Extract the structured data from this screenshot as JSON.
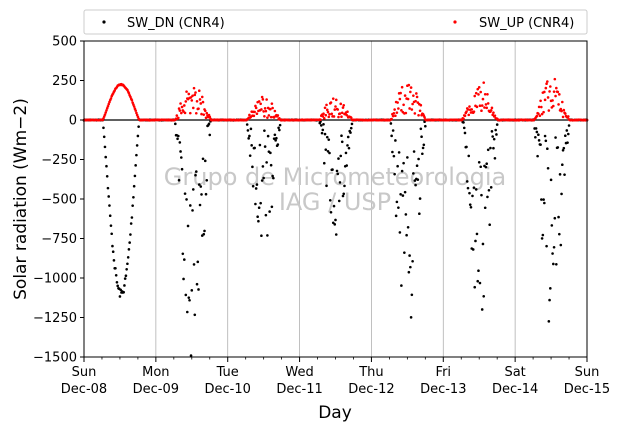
{
  "chart_data": {
    "type": "scatter",
    "ylabel": "Solar radiation (Wm−2)",
    "xlabel": "Day",
    "ylim": [
      -1500,
      500
    ],
    "xlim": [
      "2019-12-08",
      "2019-12-15"
    ],
    "yticks": [
      500,
      250,
      0,
      -250,
      -500,
      -750,
      -1000,
      -1250,
      -1500
    ],
    "ytick_labels": [
      "500",
      "250",
      "0",
      "−250",
      "−500",
      "−750",
      "−1000",
      "−1250",
      "−1500"
    ],
    "xticks": [
      {
        "day": "Sun",
        "date": "Dec-08"
      },
      {
        "day": "Mon",
        "date": "Dec-09"
      },
      {
        "day": "Tue",
        "date": "Dec-10"
      },
      {
        "day": "Wed",
        "date": "Dec-11"
      },
      {
        "day": "Thu",
        "date": "Dec-12"
      },
      {
        "day": "Fri",
        "date": "Dec-13"
      },
      {
        "day": "Sat",
        "date": "Dec-14"
      },
      {
        "day": "Sun",
        "date": "Dec-15"
      }
    ],
    "grid": "vertical",
    "zero_line": true,
    "legend_position": "top-outside",
    "watermark": [
      "Grupo de Micrometeorologia",
      "IAG / USP"
    ],
    "series": [
      {
        "name": "SW_DN (CNR4)",
        "color": "#000000",
        "marker": "point",
        "daily": [
          {
            "day": 0,
            "rise": 0.26,
            "set": 0.77,
            "peak": -1100,
            "noise": 0.05
          },
          {
            "day": 1,
            "rise": 0.26,
            "set": 0.77,
            "peak": -900,
            "noise": 0.45
          },
          {
            "day": 2,
            "rise": 0.26,
            "set": 0.74,
            "peak": -480,
            "noise": 0.45
          },
          {
            "day": 3,
            "rise": 0.27,
            "set": 0.74,
            "peak": -450,
            "noise": 0.4
          },
          {
            "day": 4,
            "rise": 0.26,
            "set": 0.76,
            "peak": -800,
            "noise": 0.45
          },
          {
            "day": 5,
            "rise": 0.26,
            "set": 0.76,
            "peak": -750,
            "noise": 0.45
          },
          {
            "day": 6,
            "rise": 0.26,
            "set": 0.76,
            "peak": -800,
            "noise": 0.45
          }
        ]
      },
      {
        "name": "SW_UP (CNR4)",
        "color": "#ff0000",
        "marker": "point",
        "daily": [
          {
            "day": 0,
            "rise": 0.26,
            "set": 0.77,
            "peak": 225,
            "noise": 0.03
          },
          {
            "day": 1,
            "rise": 0.26,
            "set": 0.77,
            "peak": 150,
            "noise": 0.35
          },
          {
            "day": 2,
            "rise": 0.26,
            "set": 0.74,
            "peak": 95,
            "noise": 0.35
          },
          {
            "day": 3,
            "rise": 0.27,
            "set": 0.74,
            "peak": 105,
            "noise": 0.3
          },
          {
            "day": 4,
            "rise": 0.26,
            "set": 0.76,
            "peak": 160,
            "noise": 0.35
          },
          {
            "day": 5,
            "rise": 0.26,
            "set": 0.76,
            "peak": 160,
            "noise": 0.35
          },
          {
            "day": 6,
            "rise": 0.26,
            "set": 0.76,
            "peak": 170,
            "noise": 0.35
          }
        ]
      }
    ]
  }
}
